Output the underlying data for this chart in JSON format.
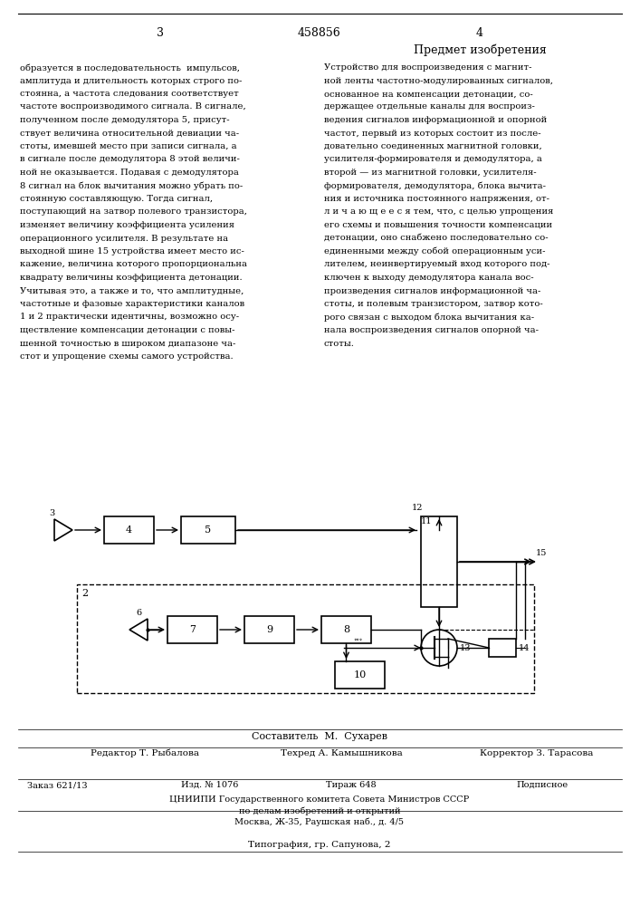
{
  "page_number_left": "3",
  "page_number_right": "4",
  "patent_number": "458856",
  "section_title": "Предмет изобретения",
  "left_text": "образуется в последовательность  импульсов,\nамплитуда и длительность которых строго по-\nстоянна, а частота следования соответствует\nчастоте воспроизводимого сигнала. В сигнале,\nполученном после демодулятора 5, присут-\nствует величина относительной девиации ча-\nстоты, имевшей место при записи сигнала, а\nв сигнале после демодулятора 8 этой величи-\nной не оказывается. Подавая с демодулятора\n8 сигнал на блок вычитания можно убрать по-\nстоянную составляющую. Тогда сигнал,\nпоступающий на затвор полевого транзистора,\nизменяет величину коэффициента усиления\nоперационного усилителя. В результате на\nвыходной шине 15 устройства имеет место ис-\nкажение, величина которого пропорциональна\nквадрату величины коэффициента детонации.\nУчитывая это, а также и то, что амплитудные,\nчастотные и фазовые характеристики каналов\n1 и 2 практически идентичны, возможно осу-\nществление компенсации детонации с повы-\nшенной точностью в широком диапазоне ча-\nстот и упрощение схемы самого устройства.",
  "right_text": "Устройство для воспроизведения с магнит-\nной ленты частотно-модулированных сигналов,\nоснованное на компенсации детонации, со-\nдержащее отдельные каналы для воспроиз-\nведения сигналов информационной и опорной\nчастот, первый из которых состоит из после-\nдовательно соединенных магнитной головки,\nусилителя-формирователя и демодулятора, а\nвторой — из магнитной головки, усилителя-\nформирователя, демодулятора, блока вычита-\nния и источника постоянного напряжения, от-\nл и ч а ю щ е е с я тем, что, с целью упрощения\nего схемы и повышения точности компенсации\nдетонации, оно снабжено последовательно со-\nединенными между собой операционным уси-\nлителем, неинвертируемый вход которого под-\nключен к выходу демодулятора канала вос-\nпроизведения сигналов информационной ча-\nстоты, и полевым транзистором, затвор кото-\nрого связан с выходом блока вычитания ка-\nнала воспроизведения сигналов опорной ча-\nстоты.",
  "footer_composer": "Составитель  М.  Сухарев",
  "footer_editor": "Редактор Т. Рыбалова",
  "footer_tech": "Техред А. Камышникова",
  "footer_corrector": "Корректор З. Тарасова",
  "footer_order": "Заказ 621/13",
  "footer_edition": "Изд. № 1076",
  "footer_circulation": "Тираж 648",
  "footer_subscription": "Подписное",
  "footer_institute": "ЦНИИПИ Государственного комитета Совета Министров СССР",
  "footer_dept": "по делам изобретений и открытий",
  "footer_address": "Москва, Ж-35, Раушская наб., д. 4/5",
  "footer_print": "Типография, гр. Сапунова, 2",
  "bg_color": "#ffffff",
  "text_color": "#000000"
}
